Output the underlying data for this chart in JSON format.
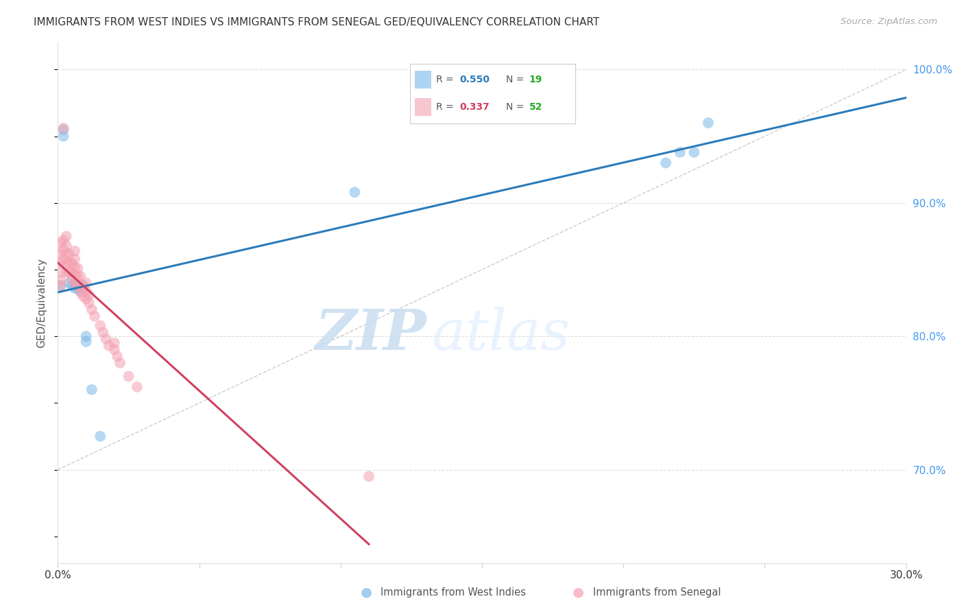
{
  "title": "IMMIGRANTS FROM WEST INDIES VS IMMIGRANTS FROM SENEGAL GED/EQUIVALENCY CORRELATION CHART",
  "source": "Source: ZipAtlas.com",
  "ylabel": "GED/Equivalency",
  "xlim": [
    0.0,
    0.3
  ],
  "ylim": [
    0.63,
    1.02
  ],
  "west_indies_color": "#7ab8e8",
  "senegal_color": "#f4a0b0",
  "west_indies_line_color": "#2b7bba",
  "senegal_line_color": "#d04060",
  "N_color": "#22aa22",
  "R_wi_color": "#2b7bba",
  "R_sen_color": "#d04060",
  "legend_R_west": "0.550",
  "legend_N_west": "19",
  "legend_R_sen": "0.337",
  "legend_N_sen": "52",
  "wi_x": [
    0.001,
    0.002,
    0.002,
    0.004,
    0.005,
    0.006,
    0.007,
    0.007,
    0.008,
    0.009,
    0.01,
    0.01,
    0.012,
    0.015,
    0.105,
    0.215,
    0.22,
    0.225,
    0.23
  ],
  "wi_y": [
    0.838,
    0.95,
    0.955,
    0.84,
    0.838,
    0.836,
    0.838,
    0.836,
    0.834,
    0.838,
    0.796,
    0.8,
    0.76,
    0.725,
    0.908,
    0.93,
    0.938,
    0.938,
    0.96
  ],
  "sen_x": [
    0.001,
    0.001,
    0.001,
    0.001,
    0.001,
    0.001,
    0.002,
    0.002,
    0.002,
    0.002,
    0.003,
    0.003,
    0.003,
    0.003,
    0.003,
    0.004,
    0.004,
    0.004,
    0.005,
    0.005,
    0.005,
    0.006,
    0.006,
    0.006,
    0.006,
    0.006,
    0.007,
    0.007,
    0.007,
    0.008,
    0.008,
    0.008,
    0.009,
    0.009,
    0.01,
    0.01,
    0.01,
    0.011,
    0.011,
    0.012,
    0.013,
    0.015,
    0.016,
    0.017,
    0.018,
    0.02,
    0.02,
    0.021,
    0.022,
    0.025,
    0.028,
    0.11
  ],
  "sen_y": [
    0.838,
    0.842,
    0.848,
    0.855,
    0.862,
    0.87,
    0.858,
    0.865,
    0.872,
    0.956,
    0.848,
    0.855,
    0.862,
    0.868,
    0.875,
    0.848,
    0.855,
    0.862,
    0.843,
    0.848,
    0.855,
    0.84,
    0.846,
    0.852,
    0.858,
    0.864,
    0.838,
    0.845,
    0.851,
    0.833,
    0.839,
    0.845,
    0.83,
    0.836,
    0.828,
    0.834,
    0.84,
    0.825,
    0.831,
    0.82,
    0.815,
    0.808,
    0.803,
    0.798,
    0.793,
    0.79,
    0.795,
    0.785,
    0.78,
    0.77,
    0.762,
    0.695
  ],
  "watermark_zip": "ZIP",
  "watermark_atlas": "atlas",
  "background_color": "#ffffff",
  "grid_color": "#dddddd",
  "right_label_color": "#4499ee",
  "bottom_label_color": "#333333"
}
